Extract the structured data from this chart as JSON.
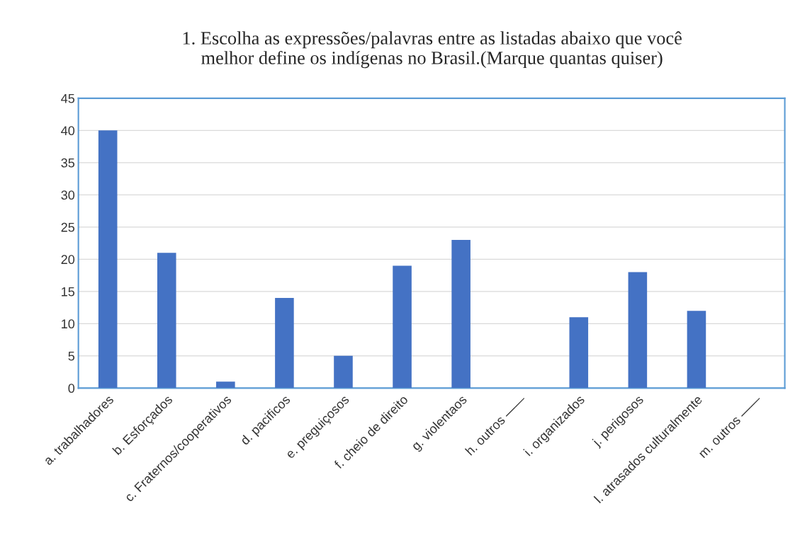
{
  "chart_data": {
    "type": "bar",
    "title": "1. Escolha as expressões/palavras entre as listadas abaixo que você\nmelhor define os indígenas no Brasil.(Marque quantas quiser)",
    "categories": [
      "a. trabalhadores",
      "b. Esforçados",
      "c. Fraternos/cooperativos",
      "d. pacificos",
      "e. preguiçosos",
      "f. cheio de direito",
      "g. violentaos",
      "h. outros ——",
      "i. organizados",
      "j. perigosos",
      "l. atrasados culturalmente",
      "m. outros ——"
    ],
    "values": [
      40,
      21,
      1,
      14,
      5,
      19,
      23,
      0,
      11,
      18,
      12,
      0
    ],
    "color": "#4472c4",
    "ylim": [
      0,
      45
    ],
    "yticks": [
      0,
      5,
      10,
      15,
      20,
      25,
      30,
      35,
      40,
      45
    ],
    "grid": "y"
  }
}
